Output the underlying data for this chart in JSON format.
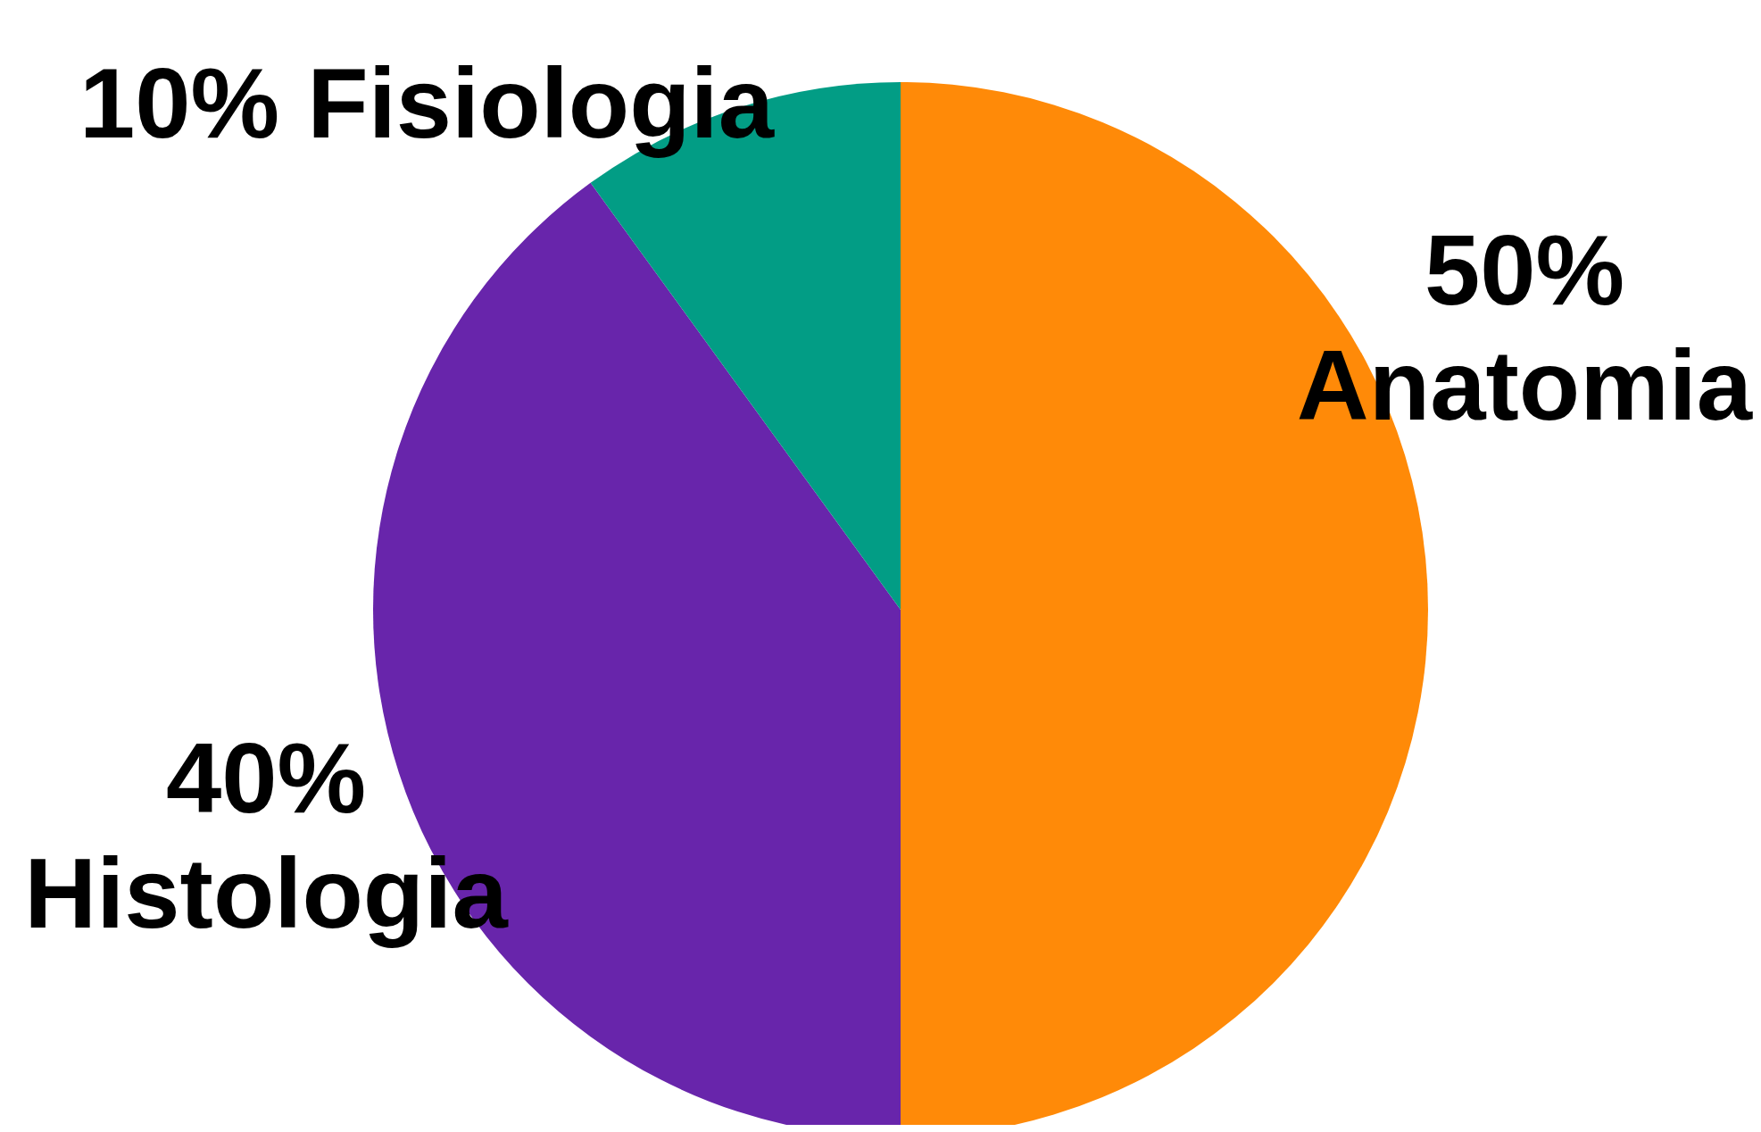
{
  "chart_data": {
    "type": "pie",
    "categories": [
      "Anatomia",
      "Histologia",
      "Fisiologia"
    ],
    "values": [
      50,
      40,
      10
    ],
    "value_labels": [
      "50%",
      "40%",
      "10%"
    ],
    "colors": [
      "#ff8a08",
      "#6825ab",
      "#029d85"
    ]
  }
}
